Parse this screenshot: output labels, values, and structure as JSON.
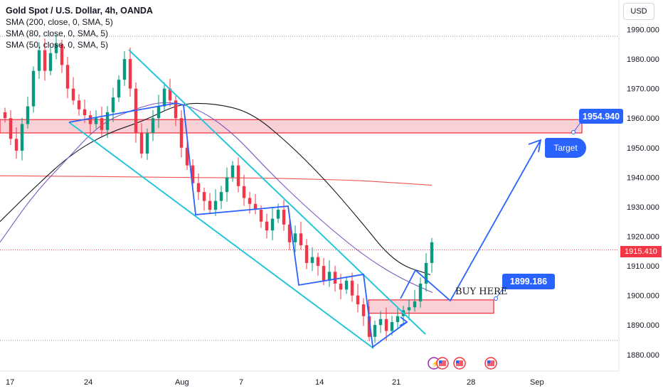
{
  "header": {
    "title": "Gold Spot / U.S. Dollar, 4h, OANDA",
    "indicators": [
      "SMA (200, close, 0, SMA, 5)",
      "SMA (80, close, 0, SMA, 5)",
      "SMA (50, close, 0, SMA, 5)"
    ]
  },
  "currency": "USD",
  "current_price": "1915.410",
  "annotations": {
    "target_price": "1954.940",
    "target_label": "Target",
    "entry_price": "1899.186",
    "buy_label": "BUY HERE"
  },
  "colors": {
    "up_candle": "#089981",
    "down_candle": "#f23645",
    "channel": "#26c6da",
    "drawing": "#2962ff",
    "sma200": "#ef5350",
    "sma80": "#131722",
    "sma50": "#7e57c2",
    "zone_fill": "#f9d0d5",
    "zone_border": "#f23645"
  },
  "chart_data": {
    "type": "candlestick",
    "y_axis_ticks": [
      "1990.000",
      "1980.000",
      "1970.000",
      "1960.000",
      "1950.000",
      "1940.000",
      "1930.000",
      "1920.000",
      "1910.000",
      "1900.000",
      "1890.000",
      "1880.000"
    ],
    "x_axis_ticks": [
      "17",
      "24",
      "Aug",
      "7",
      "14",
      "21",
      "28",
      "Sep"
    ],
    "ylim": [
      1877,
      1995
    ],
    "zones": [
      {
        "name": "resistance",
        "low": 1955,
        "high": 1959.5
      },
      {
        "name": "buy",
        "low": 1894,
        "high": 1898.5
      }
    ],
    "dotted_levels": [
      1987.7,
      1884.8
    ],
    "closes": [
      1960,
      1953,
      1949,
      1958,
      1964,
      1976,
      1983,
      1976,
      1982,
      1985,
      1978,
      1970,
      1966,
      1963,
      1961,
      1958,
      1960,
      1956,
      1962,
      1967,
      1973,
      1980,
      1970,
      1955,
      1948,
      1955,
      1960,
      1964,
      1970,
      1966,
      1960,
      1950,
      1944,
      1938,
      1935,
      1932,
      1929,
      1932,
      1935,
      1940,
      1944,
      1937,
      1933,
      1931,
      1929,
      1925,
      1922,
      1926,
      1929,
      1924,
      1918,
      1921,
      1917,
      1911,
      1913,
      1910,
      1905,
      1908,
      1904,
      1902,
      1905,
      1900,
      1897,
      1893,
      1886,
      1890,
      1892,
      1888,
      1891,
      1893,
      1895,
      1896,
      1898,
      1904,
      1911,
      1918
    ],
    "sma200": [
      1940.5,
      1940.4,
      1940.3,
      1940.2,
      1940.0,
      1939.9,
      1939.8,
      1939.7,
      1939.3,
      1939.0,
      1938.2,
      1937.3
    ],
    "sma80": [
      1925,
      1937,
      1948,
      1955,
      1959,
      1965,
      1965,
      1962,
      1952,
      1940,
      1926,
      1911,
      1907
    ],
    "sma50": [
      1918,
      1934,
      1946,
      1958,
      1963,
      1966,
      1963,
      1955,
      1943,
      1932,
      1922,
      1913,
      1906,
      1901
    ],
    "price_path": [
      [
        1905,
        1895
      ],
      [
        1893,
        1899
      ],
      [
        1957,
        1954
      ]
    ]
  }
}
